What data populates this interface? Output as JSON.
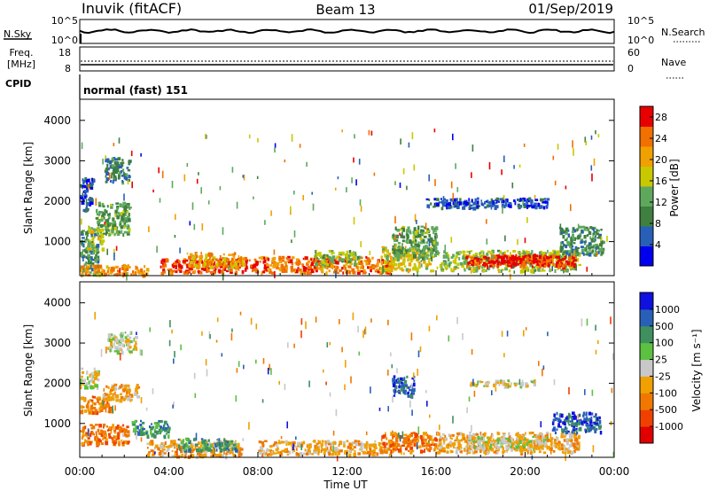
{
  "header": {
    "radar": "Inuvik (fitACF)",
    "beam": "Beam 13",
    "date": "01/Sep/2019"
  },
  "nsky": {
    "left_label": "N.Sky",
    "tick_top": "10^5",
    "tick_bottom": "10^0",
    "right_label": "N.Search",
    "right_tick_top": "10^5",
    "right_tick_bottom": "10^0"
  },
  "freq": {
    "label_line1": "Freq.",
    "label_line2": "[MHz]",
    "ticks": [
      "18",
      "8"
    ],
    "right_label": "Nave",
    "right_ticks": [
      "60",
      "0"
    ]
  },
  "cpid": {
    "label": "CPID",
    "value": "normal (fast) 151"
  },
  "panels": {
    "power": {
      "ylabel": "Slant Range [km]",
      "yticks": [
        "4000",
        "3000",
        "2000",
        "1000"
      ],
      "cbar_label": "Power [dB]"
    },
    "velocity": {
      "ylabel": "Slant Range [km]",
      "yticks": [
        "4000",
        "3000",
        "2000",
        "1000"
      ],
      "cbar_label": "Velocity [m s⁻¹]"
    }
  },
  "xaxis": {
    "ticks": [
      "00:00",
      "04:00",
      "08:00",
      "12:00",
      "16:00",
      "20:00",
      "00:00"
    ],
    "label": "Time UT"
  },
  "chart_data": [
    {
      "type": "heatmap",
      "ylabel": "Slant Range [km]",
      "xlabel": "",
      "x_range_hours": [
        0,
        24
      ],
      "ylim": [
        180,
        4500
      ],
      "colorbar": {
        "label": "Power [dB]",
        "ticks": [
          "28",
          "24",
          "20",
          "16",
          "12",
          "8",
          "4"
        ],
        "range": [
          0,
          30
        ],
        "colors": [
          "#0000ee",
          "#2860b8",
          "#3f7f3f",
          "#5ea85e",
          "#c8c800",
          "#f0a000",
          "#f07000",
          "#e80000"
        ]
      },
      "regions": [
        {
          "x": [
            0.0,
            0.8
          ],
          "y": [
            200,
            1300
          ],
          "v": 10
        },
        {
          "x": [
            0.0,
            0.6
          ],
          "y": [
            1800,
            2600
          ],
          "v": 6
        },
        {
          "x": [
            0.7,
            2.2
          ],
          "y": [
            1200,
            2000
          ],
          "v": 12
        },
        {
          "x": [
            1.1,
            2.2
          ],
          "y": [
            2500,
            3100
          ],
          "v": 8
        },
        {
          "x": [
            0.3,
            1.0
          ],
          "y": [
            800,
            1400
          ],
          "v": 16
        },
        {
          "x": [
            0.0,
            3.0
          ],
          "y": [
            200,
            450
          ],
          "v": 22
        },
        {
          "x": [
            3.5,
            8.0
          ],
          "y": [
            250,
            600
          ],
          "v": 26
        },
        {
          "x": [
            4.8,
            7.4
          ],
          "y": [
            400,
            750
          ],
          "v": 21
        },
        {
          "x": [
            8.0,
            14.0
          ],
          "y": [
            250,
            650
          ],
          "v": 24
        },
        {
          "x": [
            10.5,
            12.5
          ],
          "y": [
            450,
            800
          ],
          "v": 14
        },
        {
          "x": [
            13.5,
            15.8
          ],
          "y": [
            300,
            900
          ],
          "v": 18
        },
        {
          "x": [
            14.0,
            16.0
          ],
          "y": [
            600,
            1400
          ],
          "v": 12
        },
        {
          "x": [
            16.0,
            22.4
          ],
          "y": [
            300,
            800
          ],
          "v": 15
        },
        {
          "x": [
            17.3,
            22.2
          ],
          "y": [
            400,
            700
          ],
          "v": 27
        },
        {
          "x": [
            18.5,
            21.0
          ],
          "y": [
            500,
            680
          ],
          "v": 29
        },
        {
          "x": [
            15.5,
            21.0
          ],
          "y": [
            1850,
            2100
          ],
          "v": 5
        },
        {
          "x": [
            21.5,
            23.5
          ],
          "y": [
            700,
            1400
          ],
          "v": 10
        }
      ]
    },
    {
      "type": "heatmap",
      "ylabel": "Slant Range [km]",
      "xlabel": "Time UT",
      "x_range_hours": [
        0,
        24
      ],
      "ylim": [
        180,
        4500
      ],
      "colorbar": {
        "label": "Velocity [m s⁻¹]",
        "ticks": [
          "1000",
          "500",
          "100",
          "25",
          "-25",
          "-100",
          "-500",
          "-1000"
        ],
        "colors": [
          "#e00000",
          "#f04000",
          "#f07800",
          "#f0a000",
          "#c8c8c8",
          "#5cc040",
          "#3f8f5f",
          "#2860b8",
          "#1010e0"
        ]
      },
      "regions": [
        {
          "x": [
            0.0,
            1.4
          ],
          "y": [
            1300,
            1700
          ],
          "c": 2
        },
        {
          "x": [
            0.0,
            2.2
          ],
          "y": [
            500,
            1000
          ],
          "c": 2
        },
        {
          "x": [
            1.2,
            2.5
          ],
          "y": [
            2800,
            3300
          ],
          "c": 4
        },
        {
          "x": [
            0.0,
            0.8
          ],
          "y": [
            1900,
            2400
          ],
          "c": 4
        },
        {
          "x": [
            2.3,
            4.0
          ],
          "y": [
            700,
            1100
          ],
          "c": 6
        },
        {
          "x": [
            1.0,
            2.6
          ],
          "y": [
            1600,
            2000
          ],
          "c": 3
        },
        {
          "x": [
            3.0,
            7.2
          ],
          "y": [
            200,
            600
          ],
          "c": 3
        },
        {
          "x": [
            4.4,
            7.0
          ],
          "y": [
            350,
            650
          ],
          "c": 6
        },
        {
          "x": [
            8.0,
            14.0
          ],
          "y": [
            250,
            600
          ],
          "c": 3
        },
        {
          "x": [
            13.5,
            16.0
          ],
          "y": [
            300,
            800
          ],
          "c": 2
        },
        {
          "x": [
            14.0,
            15.0
          ],
          "y": [
            1700,
            2200
          ],
          "c": 7
        },
        {
          "x": [
            16.0,
            22.4
          ],
          "y": [
            300,
            800
          ],
          "c": 3
        },
        {
          "x": [
            17.3,
            21.0
          ],
          "y": [
            400,
            700
          ],
          "c": 4
        },
        {
          "x": [
            17.5,
            20.5
          ],
          "y": [
            1950,
            2100
          ],
          "c": 4
        },
        {
          "x": [
            21.2,
            23.4
          ],
          "y": [
            800,
            1300
          ],
          "c": 7
        }
      ]
    }
  ]
}
